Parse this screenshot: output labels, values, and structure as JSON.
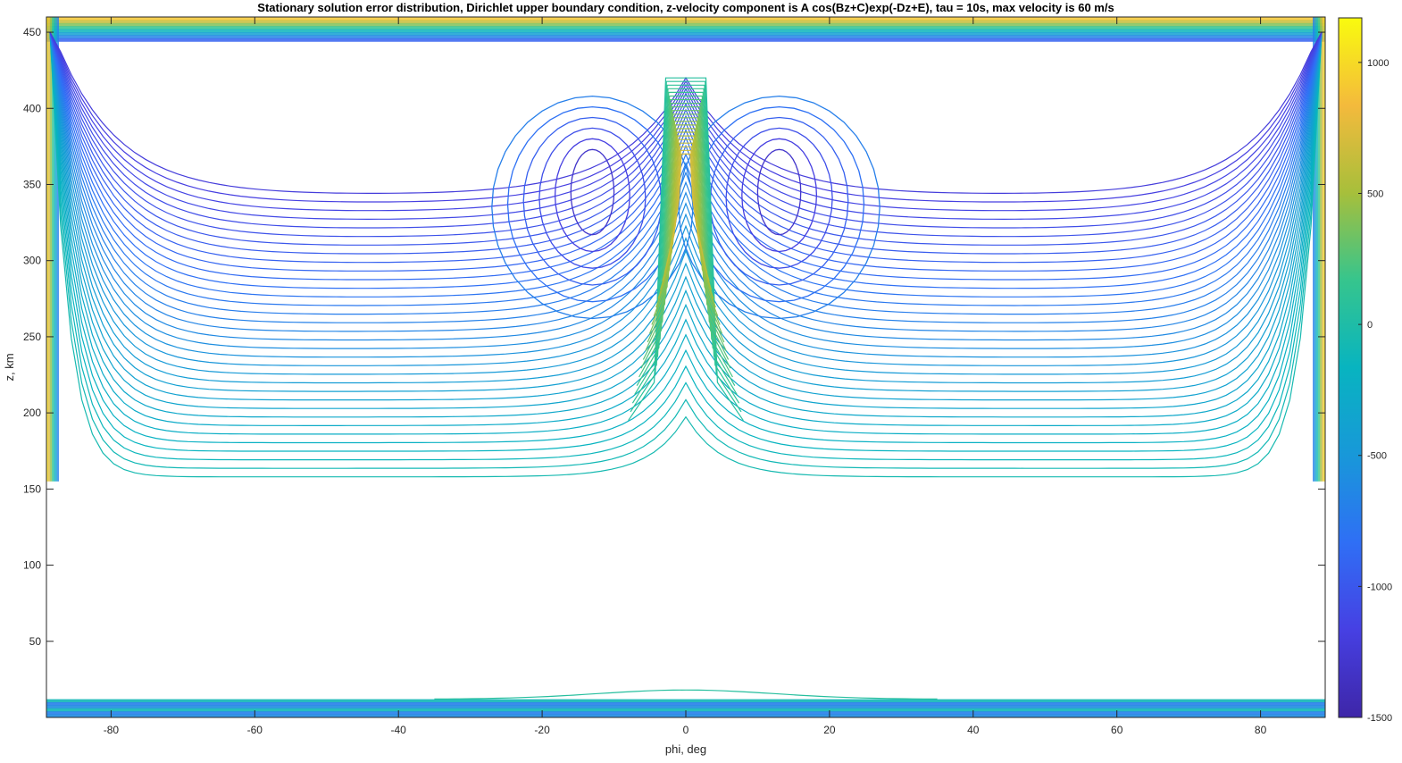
{
  "chart_data": {
    "type": "contour",
    "title": "Stationary solution error distribution, Dirichlet upper boundary condition, z-velocity component is A cos(Bz+C)exp(-Dz+E), tau = 10s, max velocity is 60 m/s",
    "xlabel": "phi, deg",
    "ylabel": "z, km",
    "xlim": [
      -89,
      89
    ],
    "ylim": [
      0,
      460
    ],
    "xticks": [
      -80,
      -60,
      -40,
      -20,
      0,
      20,
      40,
      60,
      80
    ],
    "yticks": [
      50,
      100,
      150,
      200,
      250,
      300,
      350,
      400,
      450
    ],
    "grid": false,
    "colorbar": {
      "colormap": "parula",
      "range": [
        -1500,
        1170
      ],
      "ticks": [
        -1500,
        -1000,
        -500,
        0,
        500,
        1000
      ]
    },
    "features": [
      {
        "region": "central tongue",
        "phi_range": [
          -8,
          8
        ],
        "z_range": [
          195,
          420
        ],
        "max_value": 700
      },
      {
        "region": "twin lobes",
        "phi_centers": [
          -13,
          13
        ],
        "z_range": [
          280,
          400
        ],
        "min_value": -1300
      },
      {
        "region": "upper boundary band",
        "z_range": [
          445,
          460
        ],
        "value": 900
      },
      {
        "region": "side walls",
        "phi": [
          -89,
          89
        ],
        "value": 1000
      },
      {
        "region": "lower boundary band",
        "z_range": [
          0,
          12
        ],
        "value": -600
      },
      {
        "region": "quiet interior",
        "z_range": [
          20,
          150
        ],
        "value": 0
      }
    ]
  }
}
